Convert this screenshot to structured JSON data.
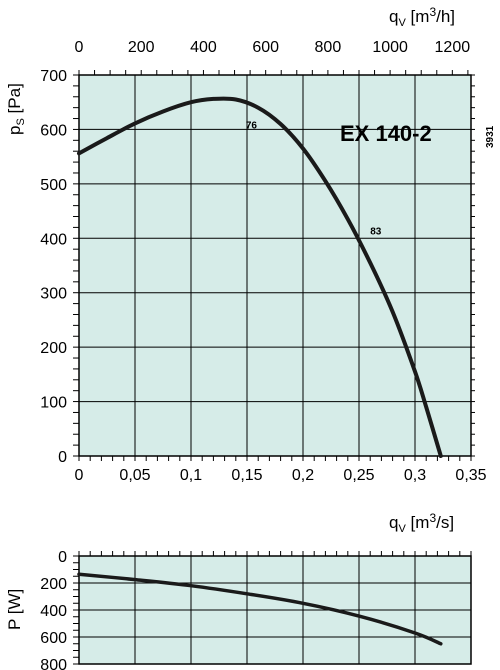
{
  "chart_data": [
    {
      "type": "line",
      "model": "EX 140-2",
      "code": "3931",
      "xlabel": "q",
      "xlabel_sub": "V",
      "xlabel_unit": "[m3/s]",
      "x2label": "q",
      "x2label_sub": "V",
      "x2label_unit": "[m3/h]",
      "ylabel": "p",
      "ylabel_sub": "S",
      "ylabel_unit": "[Pa]",
      "xlim": [
        0,
        0.35
      ],
      "ylim": [
        0,
        700
      ],
      "x2lim": [
        0,
        1260
      ],
      "xticks": [
        0,
        0.05,
        0.1,
        0.15,
        0.2,
        0.25,
        0.3,
        0.35
      ],
      "xtick_labels": [
        "0",
        "0,05",
        "0,1",
        "0,15",
        "0,2",
        "0,25",
        "0,3",
        "0,35"
      ],
      "x2ticks": [
        0,
        200,
        400,
        600,
        800,
        1000,
        1200
      ],
      "x2tick_labels": [
        "0",
        "200",
        "400",
        "600",
        "800",
        "1000",
        "1200"
      ],
      "yticks": [
        0,
        100,
        200,
        300,
        400,
        500,
        600,
        700
      ],
      "ytick_labels": [
        "0",
        "100",
        "200",
        "300",
        "400",
        "500",
        "600",
        "700"
      ],
      "grid": true,
      "background": "#d6ece8",
      "series": [
        {
          "color": "#1a1a1a",
          "x": [
            0,
            0.025,
            0.05,
            0.075,
            0.1,
            0.12,
            0.14,
            0.16,
            0.18,
            0.2,
            0.22,
            0.24,
            0.26,
            0.28,
            0.3,
            0.31,
            0.323
          ],
          "y": [
            556,
            584,
            611,
            633,
            650,
            656,
            655,
            640,
            610,
            565,
            505,
            435,
            355,
            265,
            155,
            90,
            0
          ]
        }
      ],
      "annotations": [
        {
          "text": "76",
          "x": 0.149,
          "y": 602
        },
        {
          "text": "83",
          "x": 0.26,
          "y": 407
        }
      ]
    },
    {
      "type": "line",
      "xlabel": "q",
      "xlabel_sub": "V",
      "xlabel_unit": "[m3/s]",
      "ylabel": "P [W]",
      "xlim": [
        0,
        0.35
      ],
      "ylim": [
        800,
        0
      ],
      "yticks": [
        0,
        200,
        400,
        600,
        800
      ],
      "ytick_labels": [
        "0",
        "200",
        "400",
        "600",
        "800"
      ],
      "grid": true,
      "background": "#d6ece8",
      "series": [
        {
          "color": "#1a1a1a",
          "x": [
            0,
            0.05,
            0.1,
            0.15,
            0.2,
            0.25,
            0.3,
            0.323
          ],
          "y": [
            135,
            175,
            220,
            280,
            350,
            445,
            570,
            650
          ]
        }
      ]
    }
  ]
}
